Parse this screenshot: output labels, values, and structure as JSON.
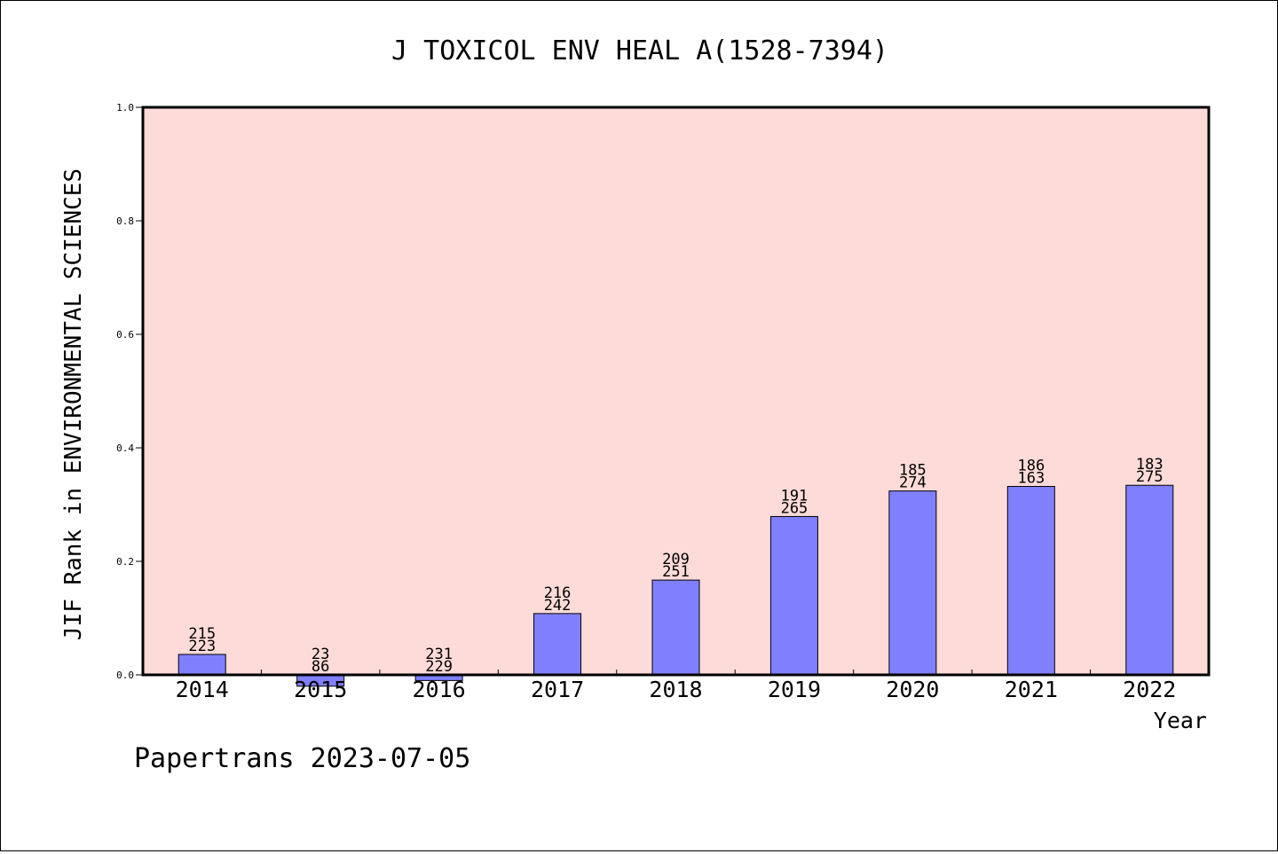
{
  "chart_data": {
    "type": "bar",
    "title": "J TOXICOL ENV HEAL A(1528-7394)",
    "xlabel": "Year",
    "ylabel": "JIF Rank in ENVIRONMENTAL SCIENCES",
    "ylim": [
      0,
      1.0
    ],
    "yticks": [
      "0.0",
      "0.2",
      "0.4",
      "0.6",
      "0.8",
      "1.0"
    ],
    "categories": [
      "2014",
      "2015",
      "2016",
      "2017",
      "2018",
      "2019",
      "2020",
      "2021",
      "2022"
    ],
    "values": [
      0.036,
      -0.02,
      -0.01,
      0.108,
      0.167,
      0.279,
      0.324,
      0.332,
      0.334
    ],
    "labels_top": [
      "215",
      "23",
      "231",
      "216",
      "209",
      "191",
      "185",
      "186",
      "183"
    ],
    "labels_bottom": [
      "223",
      "86",
      "229",
      "242",
      "251",
      "265",
      "274",
      "163",
      "275"
    ],
    "grid": false,
    "colors": {
      "plot_background": "#fddbd8",
      "bar_fill": "#8080ff",
      "bar_stroke": "#000000"
    }
  },
  "footer": "Papertrans 2023-07-05"
}
